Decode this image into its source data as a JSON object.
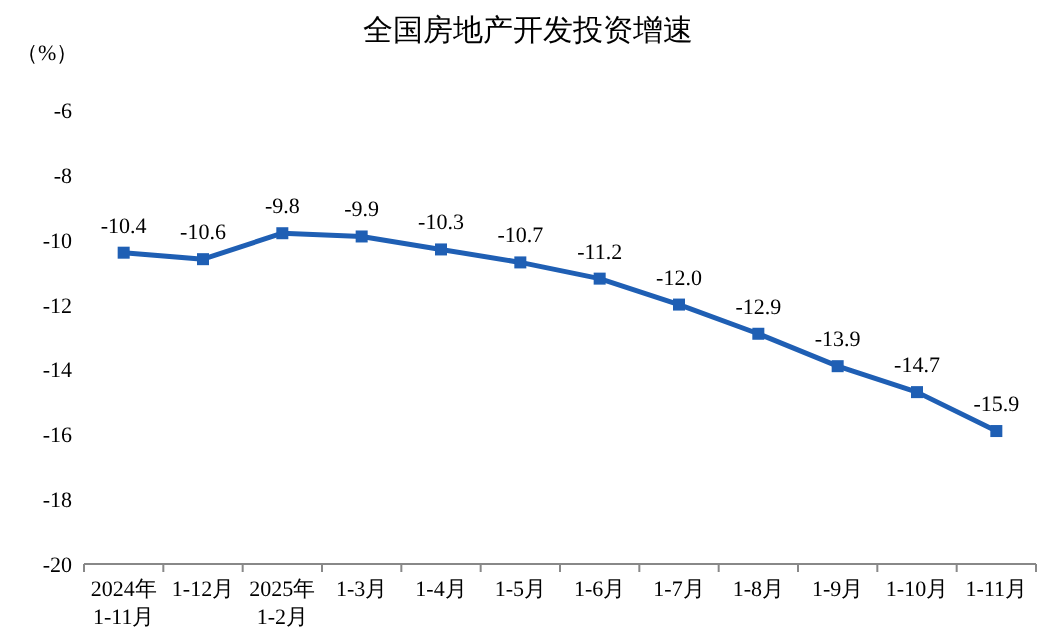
{
  "chart_data": {
    "type": "line",
    "title": "全国房地产开发投资增速",
    "ylabel": "（%）",
    "categories": [
      "2024年\n1-11月",
      "1-12月",
      "2025年\n1-2月",
      "1-3月",
      "1-4月",
      "1-5月",
      "1-6月",
      "1-7月",
      "1-8月",
      "1-9月",
      "1-10月",
      "1-11月"
    ],
    "series": [
      {
        "color": "#1f5fb4",
        "values": [
          -10.4,
          -10.6,
          -9.8,
          -9.9,
          -10.3,
          -10.7,
          -11.2,
          -12.0,
          -12.9,
          -13.9,
          -14.7,
          -15.9
        ],
        "value_labels": [
          "-10.4",
          "-10.6",
          "-9.8",
          "-9.9",
          "-10.3",
          "-10.7",
          "-11.2",
          "-12.0",
          "-12.9",
          "-13.9",
          "-14.7",
          "-15.9"
        ]
      }
    ],
    "ylim": [
      -20,
      -6
    ],
    "yticks": [
      -20,
      -18,
      -16,
      -14,
      -12,
      -10,
      -8,
      -6
    ],
    "marker": "square",
    "line_style": "solid",
    "grid": false
  }
}
